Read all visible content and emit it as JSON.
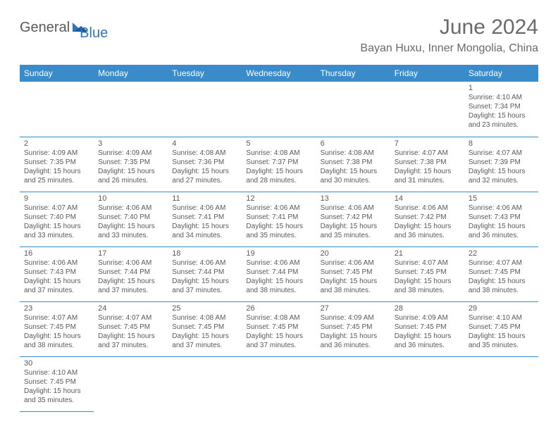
{
  "logo": {
    "part1": "General",
    "part2": "Blue"
  },
  "title": "June 2024",
  "location": "Bayan Huxu, Inner Mongolia, China",
  "colors": {
    "header_bg": "#3a8bca",
    "header_text": "#ffffff",
    "text": "#5a5a5a",
    "border": "#3a8bca"
  },
  "day_headers": [
    "Sunday",
    "Monday",
    "Tuesday",
    "Wednesday",
    "Thursday",
    "Friday",
    "Saturday"
  ],
  "weeks": [
    [
      null,
      null,
      null,
      null,
      null,
      null,
      {
        "n": "1",
        "sr": "4:10 AM",
        "ss": "7:34 PM",
        "dl": "15 hours and 23 minutes."
      }
    ],
    [
      {
        "n": "2",
        "sr": "4:09 AM",
        "ss": "7:35 PM",
        "dl": "15 hours and 25 minutes."
      },
      {
        "n": "3",
        "sr": "4:09 AM",
        "ss": "7:35 PM",
        "dl": "15 hours and 26 minutes."
      },
      {
        "n": "4",
        "sr": "4:08 AM",
        "ss": "7:36 PM",
        "dl": "15 hours and 27 minutes."
      },
      {
        "n": "5",
        "sr": "4:08 AM",
        "ss": "7:37 PM",
        "dl": "15 hours and 28 minutes."
      },
      {
        "n": "6",
        "sr": "4:08 AM",
        "ss": "7:38 PM",
        "dl": "15 hours and 30 minutes."
      },
      {
        "n": "7",
        "sr": "4:07 AM",
        "ss": "7:38 PM",
        "dl": "15 hours and 31 minutes."
      },
      {
        "n": "8",
        "sr": "4:07 AM",
        "ss": "7:39 PM",
        "dl": "15 hours and 32 minutes."
      }
    ],
    [
      {
        "n": "9",
        "sr": "4:07 AM",
        "ss": "7:40 PM",
        "dl": "15 hours and 33 minutes."
      },
      {
        "n": "10",
        "sr": "4:06 AM",
        "ss": "7:40 PM",
        "dl": "15 hours and 33 minutes."
      },
      {
        "n": "11",
        "sr": "4:06 AM",
        "ss": "7:41 PM",
        "dl": "15 hours and 34 minutes."
      },
      {
        "n": "12",
        "sr": "4:06 AM",
        "ss": "7:41 PM",
        "dl": "15 hours and 35 minutes."
      },
      {
        "n": "13",
        "sr": "4:06 AM",
        "ss": "7:42 PM",
        "dl": "15 hours and 35 minutes."
      },
      {
        "n": "14",
        "sr": "4:06 AM",
        "ss": "7:42 PM",
        "dl": "15 hours and 36 minutes."
      },
      {
        "n": "15",
        "sr": "4:06 AM",
        "ss": "7:43 PM",
        "dl": "15 hours and 36 minutes."
      }
    ],
    [
      {
        "n": "16",
        "sr": "4:06 AM",
        "ss": "7:43 PM",
        "dl": "15 hours and 37 minutes."
      },
      {
        "n": "17",
        "sr": "4:06 AM",
        "ss": "7:44 PM",
        "dl": "15 hours and 37 minutes."
      },
      {
        "n": "18",
        "sr": "4:06 AM",
        "ss": "7:44 PM",
        "dl": "15 hours and 37 minutes."
      },
      {
        "n": "19",
        "sr": "4:06 AM",
        "ss": "7:44 PM",
        "dl": "15 hours and 38 minutes."
      },
      {
        "n": "20",
        "sr": "4:06 AM",
        "ss": "7:45 PM",
        "dl": "15 hours and 38 minutes."
      },
      {
        "n": "21",
        "sr": "4:07 AM",
        "ss": "7:45 PM",
        "dl": "15 hours and 38 minutes."
      },
      {
        "n": "22",
        "sr": "4:07 AM",
        "ss": "7:45 PM",
        "dl": "15 hours and 38 minutes."
      }
    ],
    [
      {
        "n": "23",
        "sr": "4:07 AM",
        "ss": "7:45 PM",
        "dl": "15 hours and 38 minutes."
      },
      {
        "n": "24",
        "sr": "4:07 AM",
        "ss": "7:45 PM",
        "dl": "15 hours and 37 minutes."
      },
      {
        "n": "25",
        "sr": "4:08 AM",
        "ss": "7:45 PM",
        "dl": "15 hours and 37 minutes."
      },
      {
        "n": "26",
        "sr": "4:08 AM",
        "ss": "7:45 PM",
        "dl": "15 hours and 37 minutes."
      },
      {
        "n": "27",
        "sr": "4:09 AM",
        "ss": "7:45 PM",
        "dl": "15 hours and 36 minutes."
      },
      {
        "n": "28",
        "sr": "4:09 AM",
        "ss": "7:45 PM",
        "dl": "15 hours and 36 minutes."
      },
      {
        "n": "29",
        "sr": "4:10 AM",
        "ss": "7:45 PM",
        "dl": "15 hours and 35 minutes."
      }
    ],
    [
      {
        "n": "30",
        "sr": "4:10 AM",
        "ss": "7:45 PM",
        "dl": "15 hours and 35 minutes."
      },
      null,
      null,
      null,
      null,
      null,
      null
    ]
  ],
  "labels": {
    "sunrise": "Sunrise:",
    "sunset": "Sunset:",
    "daylight": "Daylight:"
  }
}
